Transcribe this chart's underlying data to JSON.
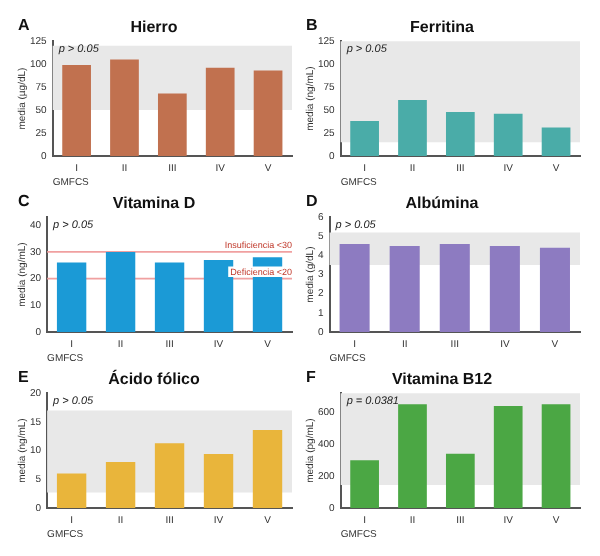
{
  "chart_data": [
    {
      "type": "bar",
      "title": "Hierro",
      "xlabel": "GMFCS",
      "ylabel": "media (µg/dL)",
      "annotations": [
        "A",
        "p > 0.05"
      ],
      "categories": [
        "I",
        "II",
        "III",
        "IV",
        "V"
      ],
      "values": [
        99,
        105,
        68,
        96,
        93
      ],
      "color": "#c1714f",
      "ylim": [
        0,
        125
      ],
      "yticks": [
        0,
        25,
        50,
        75,
        100,
        125
      ],
      "bands": [
        {
          "axis": "y",
          "from": 50,
          "to": 120,
          "color": "#e8e8e8"
        }
      ]
    },
    {
      "type": "bar",
      "title": "Ferritina",
      "xlabel": "GMFCS",
      "ylabel": "media (ng/mL)",
      "annotations": [
        "B",
        "p > 0.05"
      ],
      "categories": [
        "I",
        "II",
        "III",
        "IV",
        "V"
      ],
      "values": [
        38,
        61,
        48,
        46,
        31
      ],
      "color": "#4aaca8",
      "ylim": [
        0,
        125
      ],
      "yticks": [
        0,
        25,
        50,
        75,
        100,
        125
      ],
      "bands": [
        {
          "axis": "y",
          "from": 15,
          "to": 125,
          "color": "#e8e8e8"
        }
      ]
    },
    {
      "type": "bar",
      "title": "Vitamina D",
      "xlabel": "GMFCS",
      "ylabel": "media (ng/mL)",
      "annotations": [
        "C",
        "p > 0.05"
      ],
      "categories": [
        "I",
        "II",
        "III",
        "IV",
        "V"
      ],
      "values": [
        26,
        30,
        26,
        27,
        28
      ],
      "color": "#1b9ad6",
      "ylim": [
        0,
        43
      ],
      "yticks": [
        0,
        10,
        20,
        30,
        40
      ],
      "ref_lines": [
        {
          "axis": "y",
          "value": 30,
          "label": "Insuficiencia <30",
          "color": "#f0a0a0"
        },
        {
          "axis": "y",
          "value": 20,
          "label": "Deficiencia <20",
          "color": "#f0a0a0"
        }
      ]
    },
    {
      "type": "bar",
      "title": "Albúmina",
      "xlabel": "GMFCS",
      "ylabel": "media (g/dL)",
      "annotations": [
        "D",
        "p > 0.05"
      ],
      "categories": [
        "I",
        "II",
        "III",
        "IV",
        "V"
      ],
      "values": [
        4.6,
        4.5,
        4.6,
        4.5,
        4.4
      ],
      "color": "#8d7bc1",
      "ylim": [
        0,
        6
      ],
      "yticks": [
        0,
        1,
        2,
        3,
        4,
        5,
        6
      ],
      "bands": [
        {
          "axis": "y",
          "from": 3.5,
          "to": 5.2,
          "color": "#e8e8e8"
        }
      ]
    },
    {
      "type": "bar",
      "title": "Ácido fólico",
      "xlabel": "GMFCS",
      "ylabel": "media (ng/mL)",
      "annotations": [
        "E",
        "p > 0.05"
      ],
      "categories": [
        "I",
        "II",
        "III",
        "IV",
        "V"
      ],
      "values": [
        6,
        8,
        11.3,
        9.4,
        13.6
      ],
      "color": "#e9b53b",
      "ylim": [
        0,
        20
      ],
      "yticks": [
        0,
        5,
        10,
        15,
        20
      ],
      "bands": [
        {
          "axis": "y",
          "from": 2.7,
          "to": 17,
          "color": "#e8e8e8"
        }
      ]
    },
    {
      "type": "bar",
      "title": "Vitamina B12",
      "xlabel": "GMFCS",
      "ylabel": "media (pg/mL)",
      "annotations": [
        "F",
        "p = 0.0381"
      ],
      "categories": [
        "I",
        "II",
        "III",
        "IV",
        "V"
      ],
      "values": [
        300,
        650,
        340,
        640,
        650
      ],
      "color": "#4ba744",
      "ylim": [
        0,
        720
      ],
      "yticks": [
        0,
        200,
        400,
        600
      ],
      "bands": [
        {
          "axis": "y",
          "from": 145,
          "to": 720,
          "color": "#e8e8e8"
        }
      ]
    }
  ]
}
